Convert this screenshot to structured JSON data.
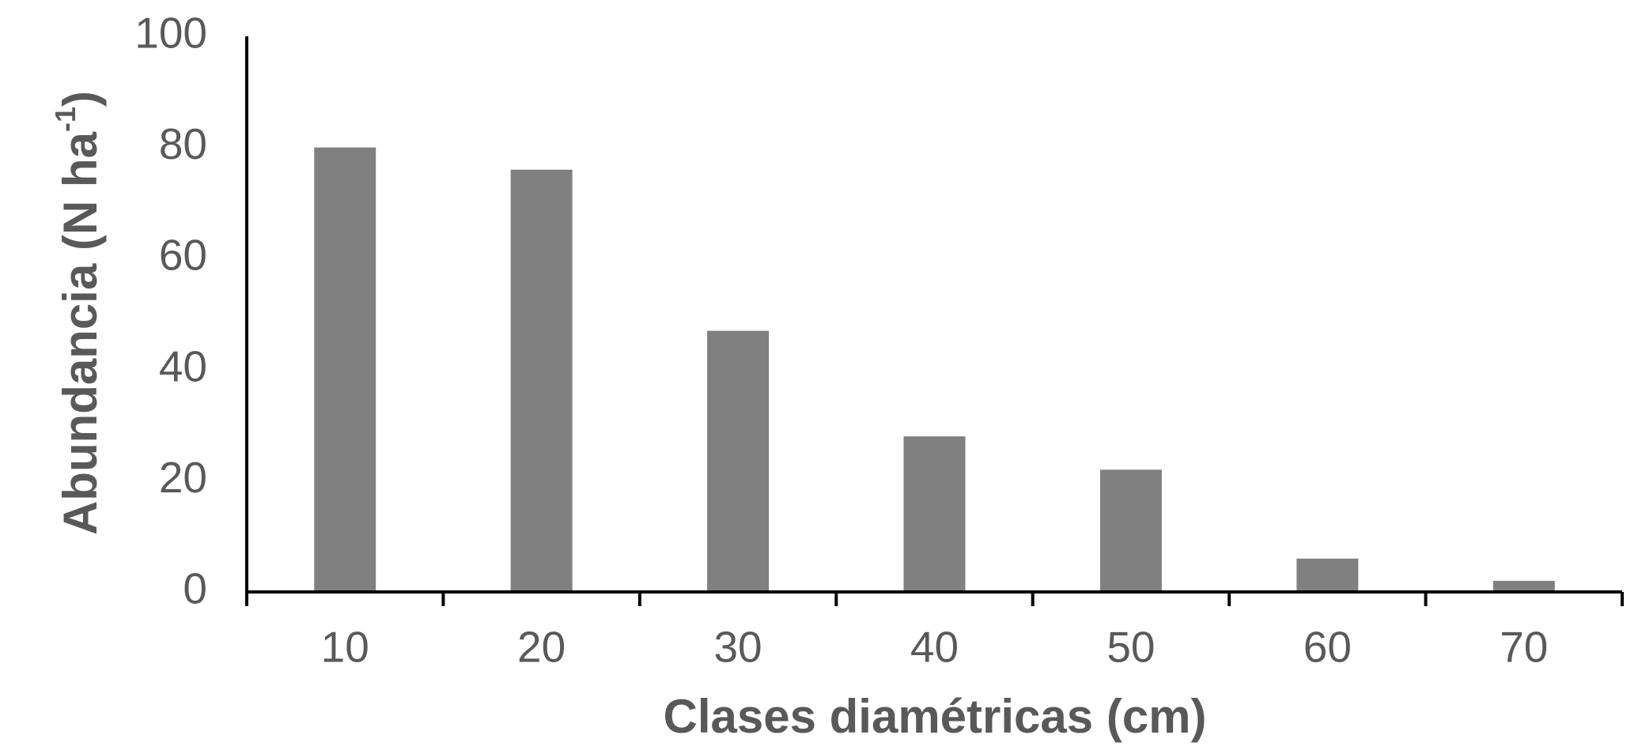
{
  "chart_data": {
    "type": "bar",
    "x_label": "Clases diamétricas (cm)",
    "y_label": [
      "Abundancia  (N ha",
      "-1",
      ")"
    ],
    "categories": [
      "10",
      "20",
      "30",
      "40",
      "50",
      "60",
      "70"
    ],
    "values": [
      80,
      76,
      47,
      28,
      22,
      6,
      2
    ],
    "color": "#808080",
    "ylim": [
      0,
      100
    ],
    "yticks": [
      0,
      20,
      40,
      60,
      80,
      100
    ],
    "grid": false
  }
}
